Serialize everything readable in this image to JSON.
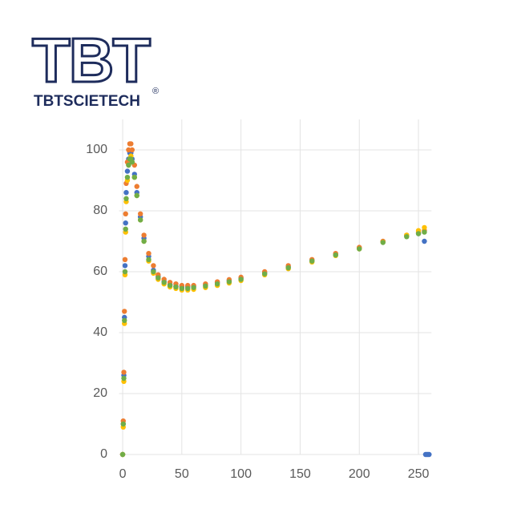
{
  "brand": {
    "logo": "TBT",
    "name": "TBTSCIETECH",
    "mark": "®"
  },
  "chart_data": {
    "type": "scatter",
    "xlim": [
      -3,
      261
    ],
    "ylim": [
      0,
      110
    ],
    "xticks": [
      0,
      50,
      100,
      150,
      200,
      250
    ],
    "yticks": [
      0,
      20,
      40,
      60,
      80,
      100
    ],
    "grid": true,
    "series": [
      {
        "color": "#4472c4",
        "x": [
          0,
          0.5,
          1,
          1.5,
          2,
          2.5,
          3,
          4,
          5,
          6,
          7,
          8,
          10,
          12,
          15,
          18,
          22,
          26,
          30,
          35,
          40,
          45,
          50,
          55,
          60,
          70,
          80,
          90,
          100,
          120,
          140,
          160,
          180,
          200,
          220,
          240,
          250,
          255,
          256,
          257,
          258,
          259
        ],
        "values": [
          0,
          10,
          26,
          45,
          62,
          76,
          86,
          93,
          97,
          99,
          99,
          97,
          92,
          86,
          78,
          71,
          65,
          60.5,
          58.5,
          56.8,
          55.8,
          55.2,
          55,
          55,
          55.2,
          55.7,
          56.4,
          57.1,
          57.9,
          59.6,
          61.6,
          63.7,
          65.7,
          67.8,
          69.9,
          71.8,
          72.5,
          70,
          0,
          0,
          0,
          0
        ]
      },
      {
        "color": "#ed7d31",
        "x": [
          0,
          0.5,
          1,
          1.5,
          2,
          2.5,
          3,
          4,
          5,
          6,
          7,
          8,
          10,
          12,
          15,
          18,
          22,
          26,
          30,
          35,
          40,
          45,
          50,
          55,
          60,
          70,
          80,
          90,
          100,
          120,
          140,
          160,
          180,
          200,
          220,
          240,
          250,
          255
        ],
        "values": [
          0,
          11,
          27,
          47,
          64,
          79,
          89,
          96,
          100,
          102,
          102,
          100,
          95,
          88,
          79,
          72,
          66,
          62,
          59,
          57.5,
          56.5,
          56,
          55.5,
          55.5,
          55.5,
          56,
          56.7,
          57.4,
          58.2,
          60,
          62,
          64,
          66,
          68,
          70,
          72,
          73,
          73.5
        ]
      },
      {
        "color": "#ffc000",
        "x": [
          0,
          0.5,
          1,
          1.5,
          2,
          2.5,
          3,
          4,
          5,
          6,
          7,
          8,
          10,
          12,
          15,
          18,
          22,
          26,
          30,
          35,
          40,
          45,
          50,
          55,
          60,
          70,
          80,
          90,
          100,
          120,
          140,
          160,
          180,
          200,
          220,
          240,
          250,
          255
        ],
        "values": [
          0,
          9,
          24,
          43,
          59,
          73,
          83,
          90,
          95,
          97,
          98,
          96,
          91,
          85,
          77,
          70,
          63.5,
          59.5,
          57.5,
          56,
          55,
          54.5,
          54,
          54,
          54.2,
          54.8,
          55.5,
          56.3,
          57.1,
          59,
          61,
          63.2,
          65.3,
          67.5,
          69.7,
          72,
          73.5,
          74.5
        ]
      },
      {
        "color": "#70ad47",
        "x": [
          0,
          0.5,
          1,
          1.5,
          2,
          2.5,
          3,
          4,
          5,
          6,
          7,
          8,
          10,
          12,
          15,
          18,
          22,
          26,
          30,
          35,
          40,
          45,
          50,
          55,
          60,
          70,
          80,
          90,
          100,
          120,
          140,
          160,
          180,
          200,
          220,
          240,
          250,
          255
        ],
        "values": [
          0,
          10,
          25,
          44,
          60,
          74,
          84,
          91,
          95,
          97,
          97,
          96,
          91,
          85,
          77,
          70,
          64,
          60,
          58,
          56.5,
          55.5,
          55,
          54.5,
          54.5,
          54.8,
          55.3,
          56,
          56.7,
          57.5,
          59.3,
          61.3,
          63.5,
          65.5,
          67.5,
          69.6,
          71.5,
          72.5,
          73
        ]
      }
    ]
  }
}
